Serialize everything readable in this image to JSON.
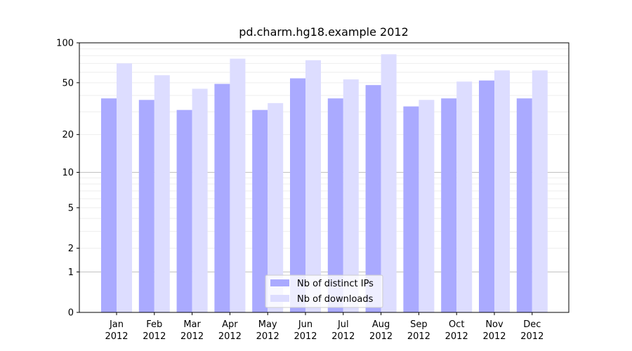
{
  "chart_data": {
    "type": "bar",
    "title": "pd.charm.hg18.example 2012",
    "xlabel": "",
    "ylabel": "",
    "categories": [
      {
        "month": "Jan",
        "year": "2012"
      },
      {
        "month": "Feb",
        "year": "2012"
      },
      {
        "month": "Mar",
        "year": "2012"
      },
      {
        "month": "Apr",
        "year": "2012"
      },
      {
        "month": "May",
        "year": "2012"
      },
      {
        "month": "Jun",
        "year": "2012"
      },
      {
        "month": "Jul",
        "year": "2012"
      },
      {
        "month": "Aug",
        "year": "2012"
      },
      {
        "month": "Sep",
        "year": "2012"
      },
      {
        "month": "Oct",
        "year": "2012"
      },
      {
        "month": "Nov",
        "year": "2012"
      },
      {
        "month": "Dec",
        "year": "2012"
      }
    ],
    "series": [
      {
        "name": "Nb of distinct IPs",
        "color": "#aaaaff",
        "values": [
          38,
          37,
          31,
          49,
          31,
          54,
          38,
          48,
          33,
          38,
          52,
          38
        ]
      },
      {
        "name": "Nb of downloads",
        "color": "#ddddff",
        "values": [
          70,
          57,
          45,
          76,
          35,
          74,
          53,
          82,
          37,
          51,
          62,
          62
        ]
      }
    ],
    "yscale": "log1p",
    "ylim": [
      0,
      100
    ],
    "yticks": [
      "0",
      "1",
      "2",
      "5",
      "10",
      "20",
      "50",
      "100"
    ],
    "grid": true,
    "legend_position": "bottom-center"
  }
}
